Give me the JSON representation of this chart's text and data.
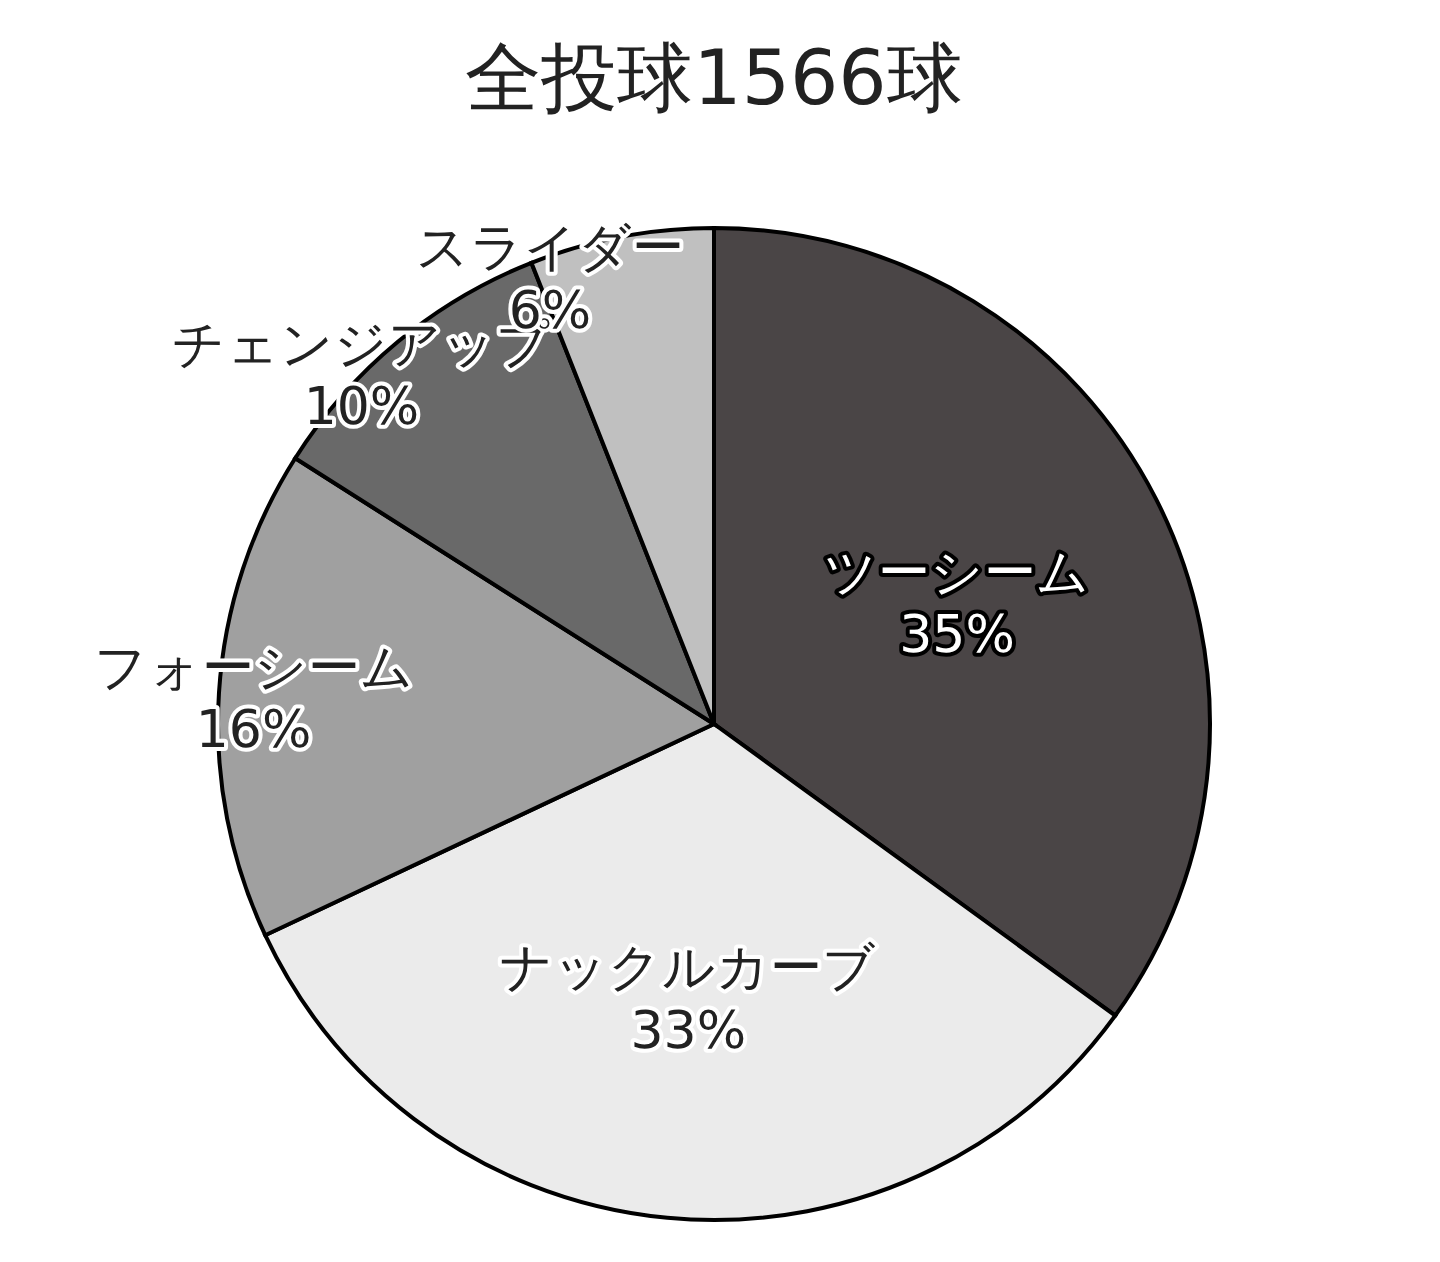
{
  "chart_data": {
    "type": "pie",
    "title": "全投球1566球",
    "categories": [
      "ツーシーム",
      "ナックルカーブ",
      "フォーシーム",
      "チェンジアップ",
      "スライダー"
    ],
    "values": [
      35,
      33,
      16,
      10,
      6
    ],
    "colors": [
      "#4a4546",
      "#ebebeb",
      "#a0a0a0",
      "#696969",
      "#c0c0c0"
    ],
    "value_labels": [
      "35%",
      "33%",
      "16%",
      "10%",
      "6%"
    ]
  }
}
